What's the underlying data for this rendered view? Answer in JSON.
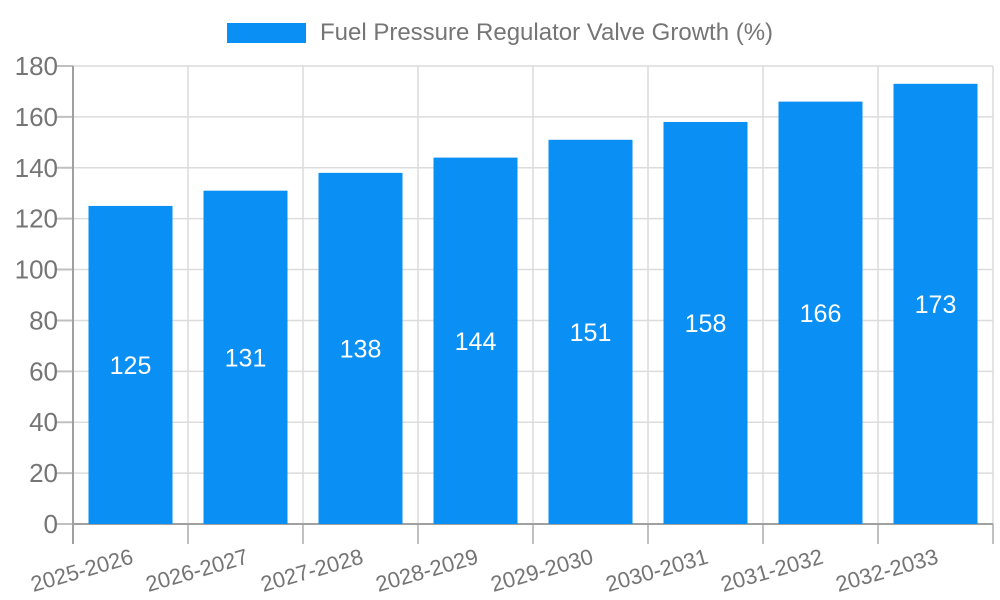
{
  "legend": {
    "label": "Fuel Pressure Regulator Valve Growth (%)"
  },
  "chart_data": {
    "type": "bar",
    "title": "Fuel Pressure Regulator Valve Growth (%)",
    "categories": [
      "2025-2026",
      "2026-2027",
      "2027-2028",
      "2028-2029",
      "2029-2030",
      "2030-2031",
      "2031-2032",
      "2032-2033"
    ],
    "values": [
      125,
      131,
      138,
      144,
      151,
      158,
      166,
      173
    ],
    "bar_value_labels": [
      "125",
      "131",
      "138",
      "144",
      "151",
      "158",
      "166",
      "173"
    ],
    "xlabel": "",
    "ylabel": "",
    "ylim": [
      0,
      180
    ],
    "ytick_step": 20,
    "ytick_labels": [
      "0",
      "20",
      "40",
      "60",
      "80",
      "100",
      "120",
      "140",
      "160",
      "180"
    ],
    "grid": "both",
    "legend_position": "top-center",
    "colors": {
      "bar_fill": "#0a8ff5",
      "bar_value_text": "#ffffff",
      "axis_text": "#757575",
      "gridline": "#dcdcdc",
      "tick": "#c0c0c0",
      "axis_line": "#a0a0a0"
    }
  }
}
